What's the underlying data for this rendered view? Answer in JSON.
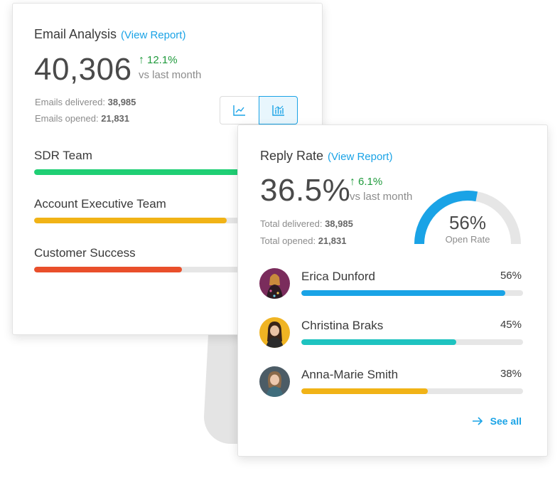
{
  "email_card": {
    "title": "Email Analysis",
    "view_report": "(View Report)",
    "total": "40,306",
    "delta": "12.1%",
    "vs": "vs last month",
    "delivered_label": "Emails delivered:",
    "delivered_value": "38,985",
    "opened_label": "Emails opened:",
    "opened_value": "21,831",
    "toggle": [
      "line-chart-icon",
      "bar-chart-icon"
    ],
    "teams": [
      {
        "label": "SDR Team",
        "value": 0.96,
        "color": "#1fcf74"
      },
      {
        "label": "Account Executive Team",
        "value": 0.73,
        "color": "#f1b316"
      },
      {
        "label": "Customer Success",
        "value": 0.56,
        "color": "#e94f2b"
      }
    ]
  },
  "reply_card": {
    "title": "Reply Rate",
    "view_report": "(View Report)",
    "rate": "36.5%",
    "delta": "6.1%",
    "vs": "vs last month",
    "delivered_label": "Total delivered:",
    "delivered_value": "38,985",
    "opened_label": "Total opened:",
    "opened_value": "21,831",
    "gauge": {
      "value": 0.56,
      "label_value": "56%",
      "label": "Open Rate",
      "color": "#1aa3e6",
      "track": "#e6e6e6"
    },
    "people": [
      {
        "name": "Erica Dunford",
        "pct": "56%",
        "value": 0.92,
        "color": "#1aa3e6",
        "avatar_bg": "#7a2c5c"
      },
      {
        "name": "Christina Braks",
        "pct": "45%",
        "value": 0.7,
        "color": "#1ec3c0",
        "avatar_bg": "#f0b423"
      },
      {
        "name": "Anna-Marie Smith",
        "pct": "38%",
        "value": 0.57,
        "color": "#f1b316",
        "avatar_bg": "#4c5c66"
      }
    ],
    "see_all": "See all"
  }
}
